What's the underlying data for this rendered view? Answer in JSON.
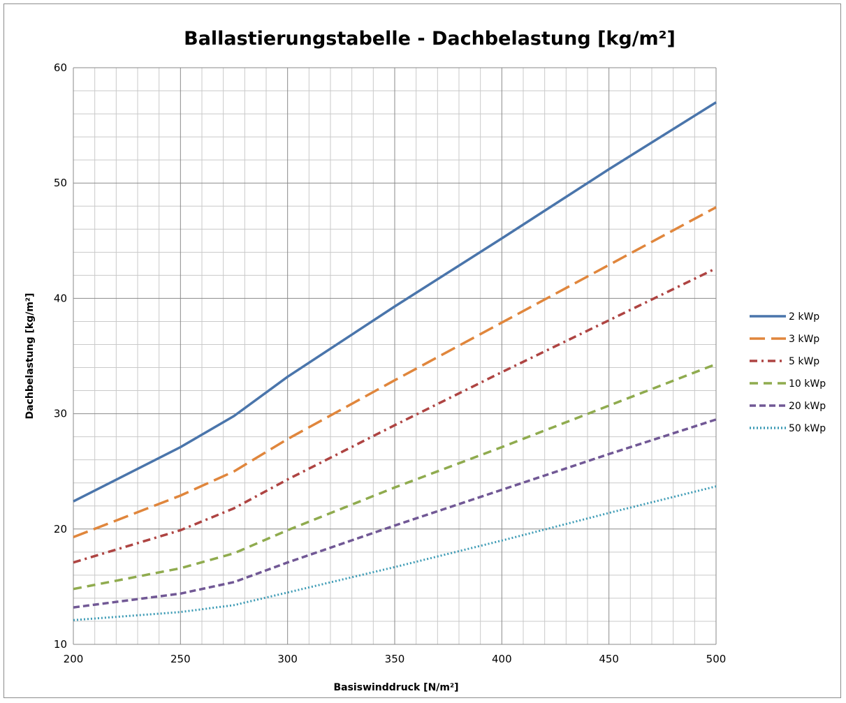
{
  "chart_data": {
    "type": "line",
    "title": "Ballastierungstabelle - Dachbelastung [kg/m²]",
    "xlabel": "Basiswinddruck [N/m²]",
    "ylabel": "Dachbelastung [kg/m²]",
    "xlim": [
      200,
      500
    ],
    "ylim": [
      10,
      60
    ],
    "x_ticks": [
      200,
      250,
      300,
      350,
      400,
      450,
      500
    ],
    "y_ticks": [
      10,
      20,
      30,
      40,
      50,
      60
    ],
    "x_minor_step": 10,
    "y_minor_step": 2,
    "grid": true,
    "legend_position": "right",
    "x": [
      200,
      250,
      275,
      300,
      350,
      400,
      450,
      500
    ],
    "series": [
      {
        "name": "2 kWp",
        "color": "#4a75ab",
        "dash": "solid",
        "values": [
          22.4,
          27.1,
          29.8,
          33.2,
          39.3,
          45.2,
          51.2,
          57.0
        ]
      },
      {
        "name": "3 kWp",
        "color": "#e0863c",
        "dash": "longdash",
        "values": [
          19.3,
          22.9,
          25.0,
          27.8,
          32.9,
          37.9,
          42.9,
          47.9
        ]
      },
      {
        "name": "5 kWp",
        "color": "#ae4442",
        "dash": "dashdot",
        "values": [
          17.1,
          19.9,
          21.8,
          24.3,
          29.0,
          33.6,
          38.1,
          42.6
        ]
      },
      {
        "name": "10 kWp",
        "color": "#8fab4e",
        "dash": "dash",
        "values": [
          14.8,
          16.6,
          17.9,
          19.9,
          23.6,
          27.1,
          30.7,
          34.3
        ]
      },
      {
        "name": "20 kWp",
        "color": "#715895",
        "dash": "shortdash",
        "values": [
          13.2,
          14.4,
          15.4,
          17.1,
          20.3,
          23.4,
          26.5,
          29.5
        ]
      },
      {
        "name": "50 kWp",
        "color": "#3d9bb5",
        "dash": "dot",
        "values": [
          12.1,
          12.8,
          13.4,
          14.5,
          16.7,
          19.0,
          21.4,
          23.7
        ]
      }
    ]
  }
}
